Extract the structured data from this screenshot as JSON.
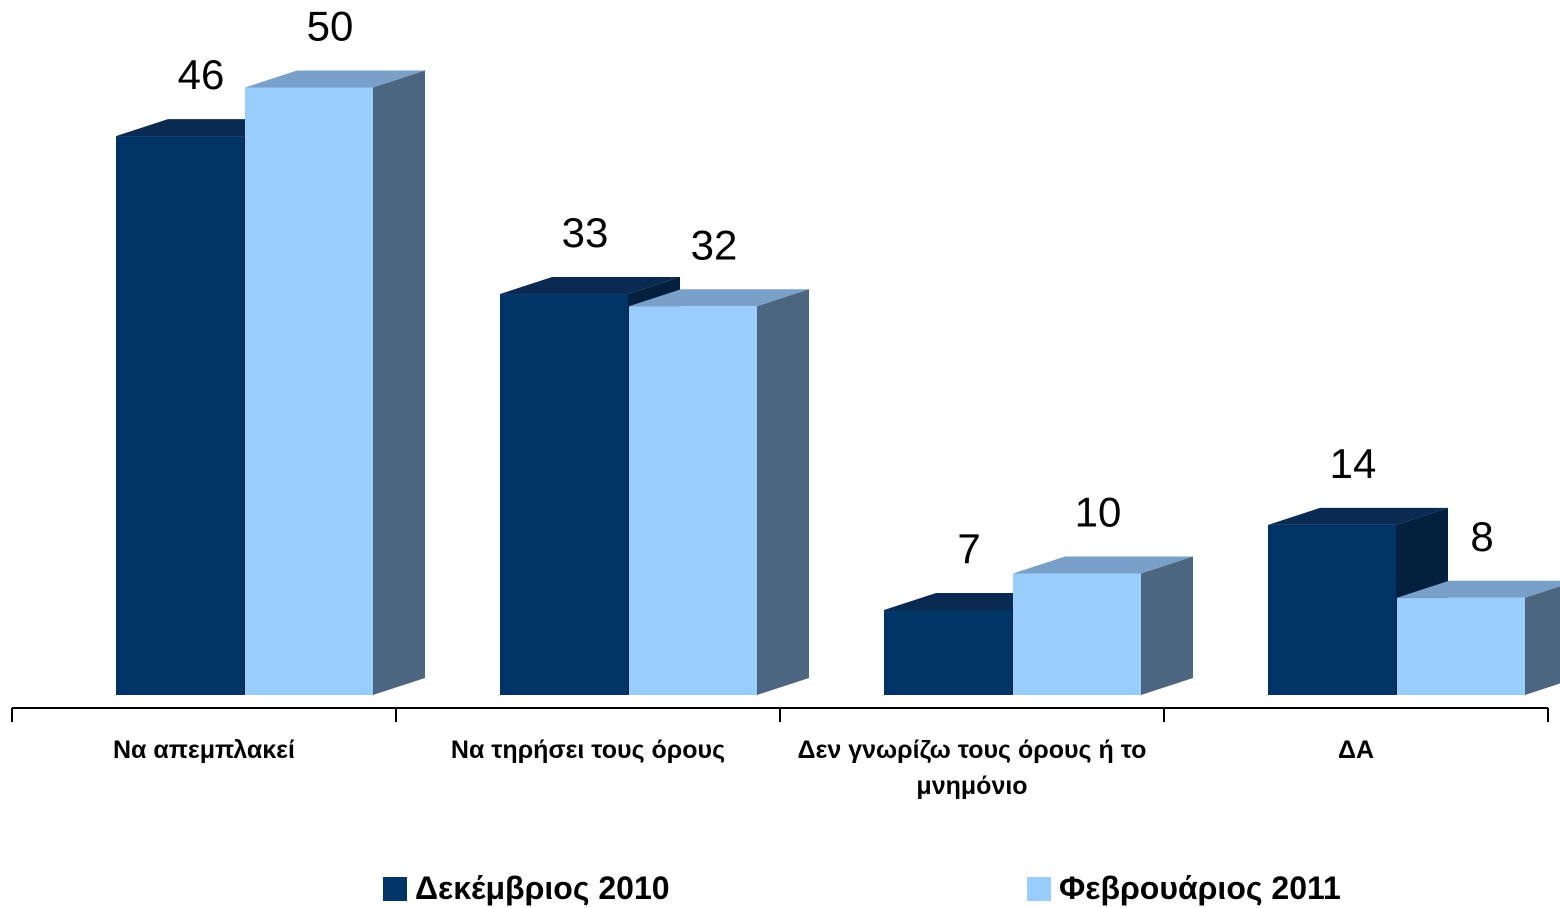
{
  "chart_data": {
    "type": "bar3d",
    "categories": [
      "Να απεμπλακεί",
      "Να τηρήσει τους όρους",
      "Δεν γνωρίζω τους όρους ή το μνημόνιο",
      "ΔΑ"
    ],
    "series": [
      {
        "name": "Δεκέμβριος 2010",
        "color": "#003366",
        "values": [
          46,
          33,
          7,
          14
        ]
      },
      {
        "name": "Φεβρουάριος 2011",
        "color": "#99ccff",
        "values": [
          50,
          32,
          10,
          8
        ]
      }
    ]
  }
}
